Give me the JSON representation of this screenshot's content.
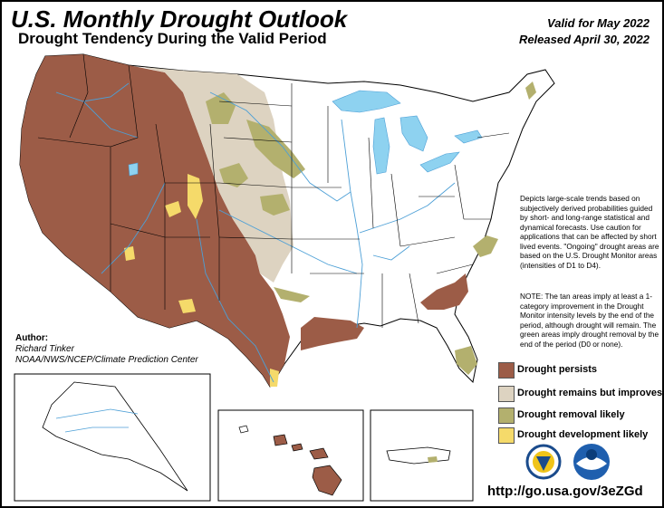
{
  "header": {
    "title": "U.S. Monthly Drought Outlook",
    "subtitle": "Drought Tendency During the Valid Period",
    "valid": "Valid for May 2022",
    "released": "Released April 30, 2022"
  },
  "description": "Depicts large-scale trends based on subjectively derived probabilities guided by short- and long-range statistical and dynamical forecasts. Use caution for applications that can be affected by short lived events. \"Ongoing\" drought areas are based on the U.S. Drought Monitor areas (intensities of D1 to D4).",
  "note": "NOTE: The tan areas imply at least a 1-category improvement in the Drought Monitor intensity levels by the end of the period, although drought will remain. The green areas imply drought removal by the end of the period (D0 or none).",
  "legend": [
    {
      "label": "Drought persists",
      "color": "#9c5c47"
    },
    {
      "label": "Drought remains but improves",
      "color": "#ddd3c1"
    },
    {
      "label": "Drought removal likely",
      "color": "#b3b06e"
    },
    {
      "label": "Drought development likely",
      "color": "#f5da6a"
    }
  ],
  "author": {
    "label": "Author:",
    "name": "Richard Tinker",
    "org": "NOAA/NWS/NCEP/Climate Prediction Center"
  },
  "url": "http://go.usa.gov/3eZGd",
  "logos": [
    "doc-seal-icon",
    "noaa-logo-icon"
  ],
  "colors": {
    "water": "#8ed2f0",
    "river": "#4c9fd6"
  }
}
